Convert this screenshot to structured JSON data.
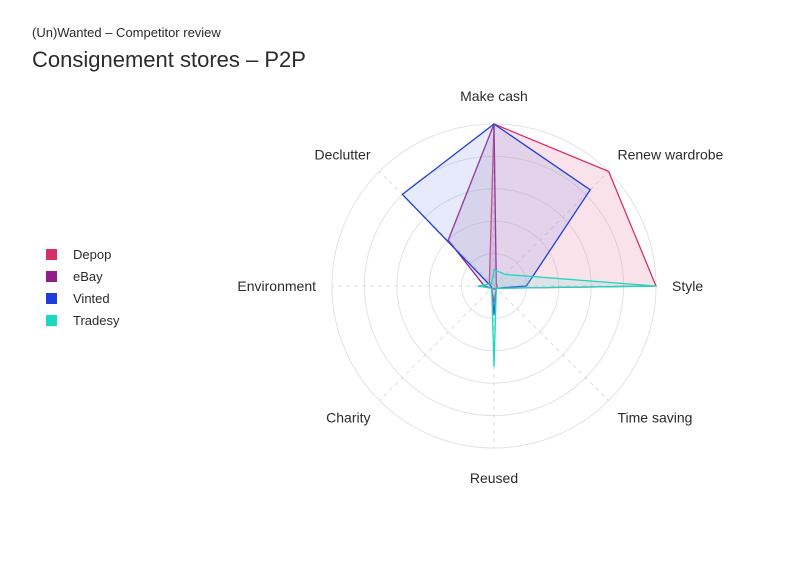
{
  "header": {
    "supertitle": "(Un)Wanted – Competitor review",
    "title": "Consignement stores – P2P"
  },
  "chart_data": {
    "type": "radar",
    "axes": [
      "Make cash",
      "Renew wardrobe",
      "Style",
      "Time saving",
      "Reused",
      "Charity",
      "Environment",
      "Declutter"
    ],
    "rmax": 5,
    "grid": true,
    "legend_position": "left",
    "series": [
      {
        "name": "Depop",
        "color": "#d6306a",
        "fill": "#e87aa4",
        "values": [
          5,
          5,
          5,
          0.1,
          0.5,
          0.1,
          0.1,
          0.2
        ]
      },
      {
        "name": "eBay",
        "color": "#8e1f8a",
        "fill": "#a77ab8",
        "values": [
          5,
          0.1,
          0.1,
          0.1,
          0.1,
          0.1,
          0.3,
          2.0
        ]
      },
      {
        "name": "Vinted",
        "color": "#1d3fd8",
        "fill": "#8fa0e6",
        "values": [
          5,
          4.2,
          1.0,
          0.1,
          0.9,
          0.1,
          0.1,
          4.0
        ]
      },
      {
        "name": "Tradesy",
        "color": "#1cd8c0",
        "fill": "#7feadb",
        "values": [
          0.5,
          0.5,
          5,
          0.1,
          2.5,
          0.1,
          0.5,
          0.1
        ]
      }
    ]
  }
}
